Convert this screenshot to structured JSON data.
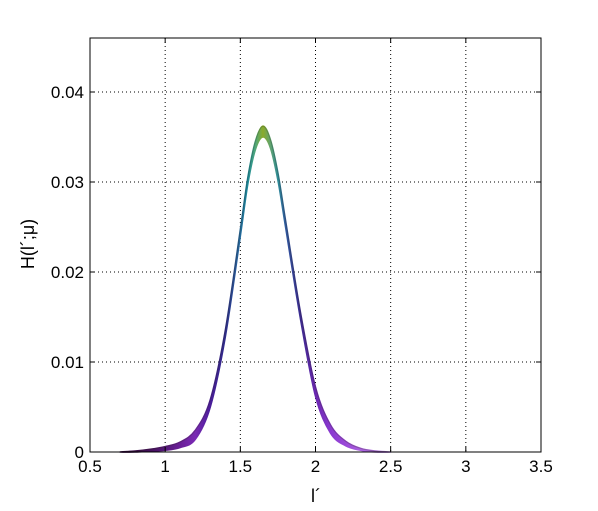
{
  "chart_data": {
    "type": "area",
    "title": "",
    "xlabel": "l´",
    "ylabel": "H(l´;μ)",
    "xlim": [
      0.5,
      3.5
    ],
    "ylim": [
      0,
      0.046
    ],
    "grid": true,
    "grid_style": "dotted",
    "x_ticks": [
      0.5,
      1,
      1.5,
      2,
      2.5,
      3,
      3.5
    ],
    "x_tick_labels": [
      "0.5",
      "1",
      "1.5",
      "2",
      "2.5",
      "3",
      "3.5"
    ],
    "y_ticks": [
      0,
      0.01,
      0.02,
      0.03,
      0.04
    ],
    "y_tick_labels": [
      "0",
      "0.01",
      "0.02",
      "0.03",
      "0.04"
    ],
    "series": [
      {
        "x": [
          0.7,
          0.8,
          0.9,
          1.0,
          1.1,
          1.2,
          1.3,
          1.4,
          1.5,
          1.55,
          1.6,
          1.65,
          1.7,
          1.75,
          1.8,
          1.9,
          2.0,
          2.1,
          2.2,
          2.3,
          2.4,
          2.5
        ],
        "upper": [
          0.0,
          0.0001,
          0.0003,
          0.0006,
          0.0011,
          0.0024,
          0.0058,
          0.0135,
          0.0247,
          0.0305,
          0.0345,
          0.0362,
          0.0347,
          0.031,
          0.0258,
          0.0155,
          0.0072,
          0.003,
          0.0012,
          0.0004,
          0.0001,
          0.0
        ],
        "lower": [
          0.0,
          0.0,
          0.0001,
          0.0002,
          0.0005,
          0.0014,
          0.005,
          0.0128,
          0.024,
          0.0298,
          0.0336,
          0.035,
          0.0338,
          0.0302,
          0.0251,
          0.0148,
          0.0062,
          0.0021,
          0.0007,
          0.0002,
          0.0,
          0.0
        ],
        "colors": [
          "#3a0a4a",
          "#3c0850",
          "#45105e",
          "#55187a",
          "#6a1e98",
          "#7a2ab4",
          "#4a1c9a",
          "#2e2a8c",
          "#236a9e",
          "#1c8a9c",
          "#50a87a",
          "#8aaa2a",
          "#60a470",
          "#2e8c98",
          "#2f5aa0",
          "#3c2a92",
          "#6a26b0",
          "#8a3ad0",
          "#9a48d8",
          "#aa60e0",
          "#b070e4",
          "#b880e8"
        ]
      }
    ]
  }
}
